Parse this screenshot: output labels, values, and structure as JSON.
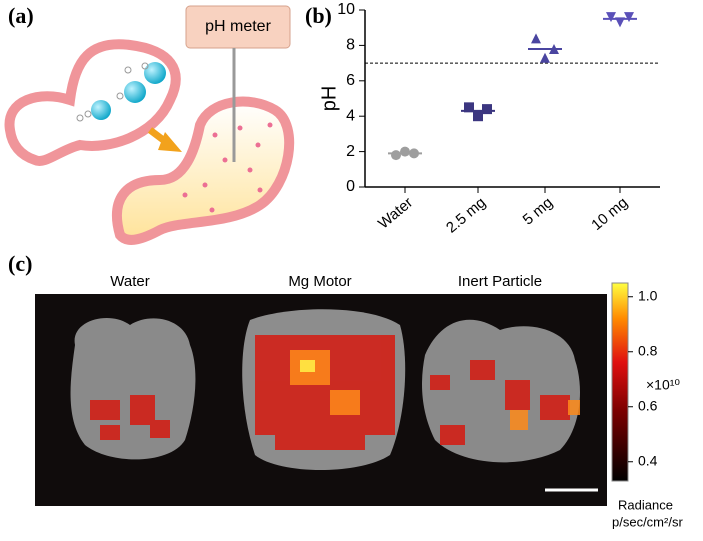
{
  "panels": {
    "a": "(a)",
    "b": "(b)",
    "c": "(c)"
  },
  "diagram": {
    "meter_label": "pH meter"
  },
  "chart_data": {
    "type": "dot",
    "y_label": "pH",
    "categories": [
      "Water",
      "2.5 mg",
      "5 mg",
      "10 mg"
    ],
    "values": [
      [
        1.8,
        2.0,
        1.9
      ],
      [
        4.5,
        4.0,
        4.4
      ],
      [
        8.4,
        7.3,
        7.8
      ],
      [
        9.6,
        9.3,
        9.6
      ]
    ],
    "means": [
      1.9,
      4.3,
      7.8,
      9.5
    ],
    "colors": [
      "#9e9e9e",
      "#3b3680",
      "#4a45a0",
      "#5a50b8"
    ],
    "markers": [
      "circle",
      "square",
      "triangle-up",
      "triangle-down"
    ],
    "ylim": [
      0,
      10
    ],
    "yticks": [
      0,
      2,
      4,
      6,
      8,
      10
    ],
    "reference_line": 7
  },
  "image_panel": {
    "titles": [
      "Water",
      "Mg Motor",
      "Inert Particle"
    ],
    "colorbar": {
      "lim": [
        0.33,
        1.05
      ],
      "ticks": [
        0.4,
        0.6,
        0.8,
        {
          "value": 1.0,
          "label": "1.0"
        }
      ],
      "exponent_label": "×10¹⁰",
      "label": "Radiance",
      "units": "p/sec/cm²/sr"
    }
  }
}
